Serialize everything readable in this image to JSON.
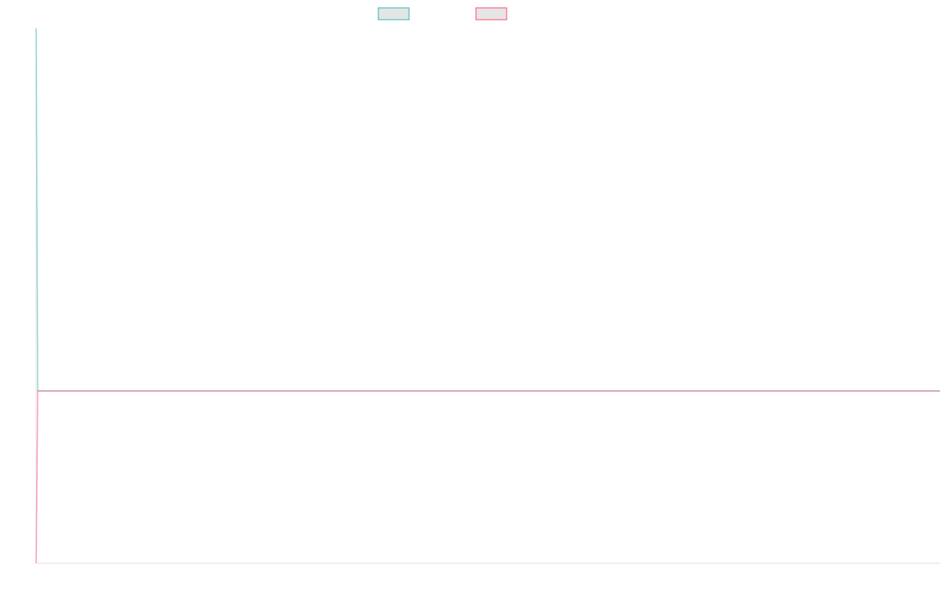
{
  "chart_data": {
    "type": "line",
    "title": "",
    "xlabel": "",
    "ylabel": "",
    "xlim": [
      0,
      575
    ],
    "ylim": [
      0,
      1
    ],
    "grid": false,
    "legend": "top",
    "series": [
      {
        "color": "#4bc0c0",
        "legend_fill": "#e5e5e5",
        "points": [
          [
            0,
            1
          ],
          [
            1,
            0.322
          ],
          [
            575,
            0.322
          ]
        ]
      },
      {
        "color": "#ff6384",
        "legend_fill": "#e5e5e5",
        "points": [
          [
            0,
            0
          ],
          [
            1,
            0.322
          ],
          [
            575,
            0.322
          ]
        ]
      }
    ]
  }
}
